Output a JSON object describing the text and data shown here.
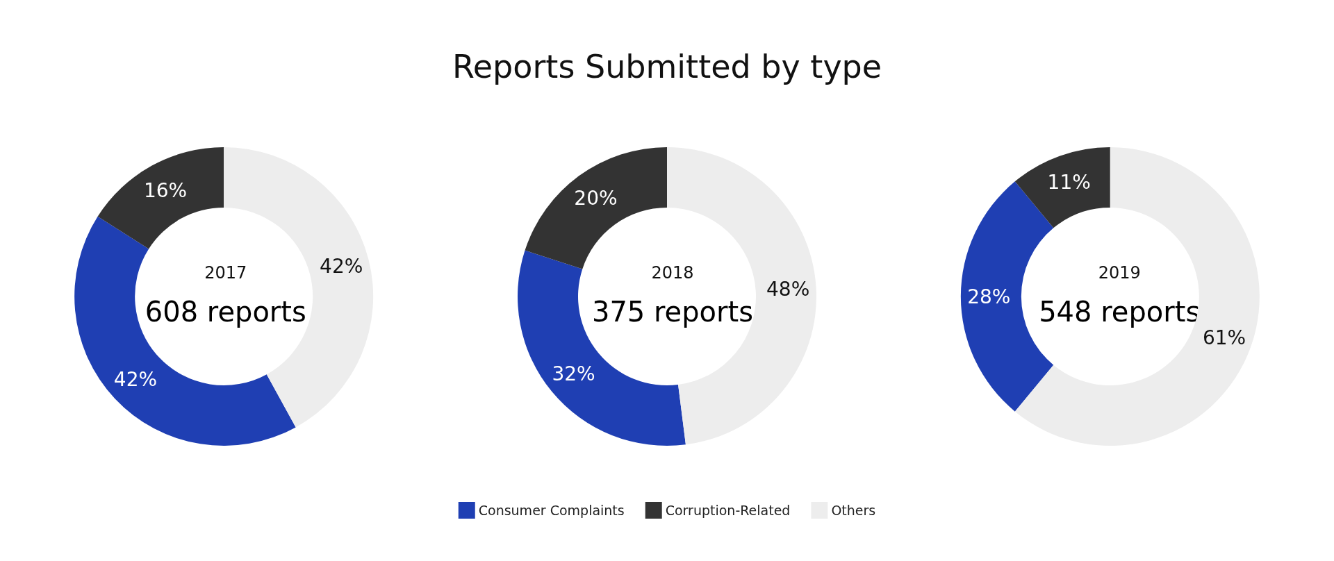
{
  "chart_data": {
    "type": "donut",
    "title": "Reports Submitted by type",
    "categories": [
      "Consumer Complaints",
      "Corruption-Related",
      "Others"
    ],
    "colors": [
      "#1f3fb3",
      "#333333",
      "#ededed"
    ],
    "legend": "bottom",
    "series": [
      {
        "name": "2017",
        "values": [
          42,
          16,
          42
        ],
        "value_labels": [
          "42%",
          "16%",
          "42%"
        ]
      },
      {
        "name": "2018",
        "values": [
          32,
          20,
          48
        ],
        "value_labels": [
          "32%",
          "20%",
          "48%"
        ]
      },
      {
        "name": "2019",
        "values": [
          28,
          11,
          61
        ],
        "value_labels": [
          "28%",
          "11%",
          "61%"
        ]
      }
    ],
    "annotations": [
      "608 reports",
      "375 reports",
      "548 reports"
    ]
  }
}
